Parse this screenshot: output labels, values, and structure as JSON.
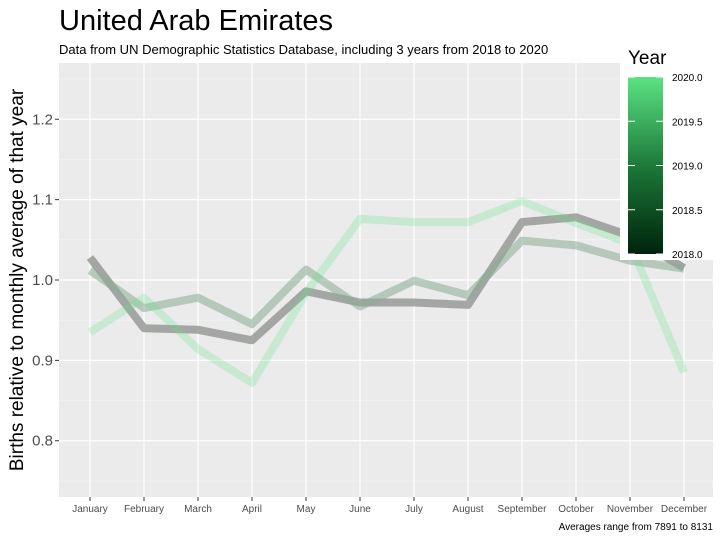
{
  "chart_data": {
    "type": "line",
    "title": "United Arab Emirates",
    "subtitle": "Data from UN Demographic Statistics Database, including 3 years from 2018 to 2020",
    "xlabel": "",
    "ylabel": "Births relative to monthly average of that year",
    "caption": "Averages range from 7891 to 8131",
    "categories": [
      "January",
      "February",
      "March",
      "April",
      "May",
      "June",
      "July",
      "August",
      "September",
      "October",
      "November",
      "December"
    ],
    "ylim": [
      0.73,
      1.27
    ],
    "yticks": [
      0.8,
      0.9,
      1.0,
      1.1,
      1.2
    ],
    "ytick_labels": [
      "0.8",
      "0.9",
      "1.0",
      "1.1",
      "1.2"
    ],
    "grid": true,
    "legend": {
      "title": "Year",
      "type": "colorbar",
      "position": "right",
      "range": [
        2018.0,
        2020.0
      ],
      "ticks": [
        2020.0,
        2019.5,
        2019.0,
        2018.5,
        2018.0
      ],
      "tick_labels": [
        "2020.0",
        "2019.5",
        "2019.0",
        "2018.5",
        "2018.0"
      ],
      "color_low": "#00230c",
      "color_high": "#5be383"
    },
    "series": [
      {
        "year": 2018,
        "color": "#8c8f8c",
        "opacity": 0.75,
        "values": [
          1.028,
          0.94,
          0.938,
          0.925,
          0.986,
          0.972,
          0.972,
          0.969,
          1.072,
          1.078,
          1.055,
          1.015
        ]
      },
      {
        "year": 2019,
        "color": "#8aab92",
        "opacity": 0.55,
        "values": [
          1.012,
          0.965,
          0.978,
          0.945,
          1.013,
          0.967,
          0.999,
          0.981,
          1.049,
          1.043,
          1.024,
          1.014
        ]
      },
      {
        "year": 2020,
        "color": "#5be383",
        "opacity": 0.25,
        "values": [
          0.935,
          0.978,
          0.914,
          0.872,
          0.984,
          1.076,
          1.072,
          1.072,
          1.098,
          1.071,
          1.045,
          0.885
        ]
      }
    ]
  }
}
